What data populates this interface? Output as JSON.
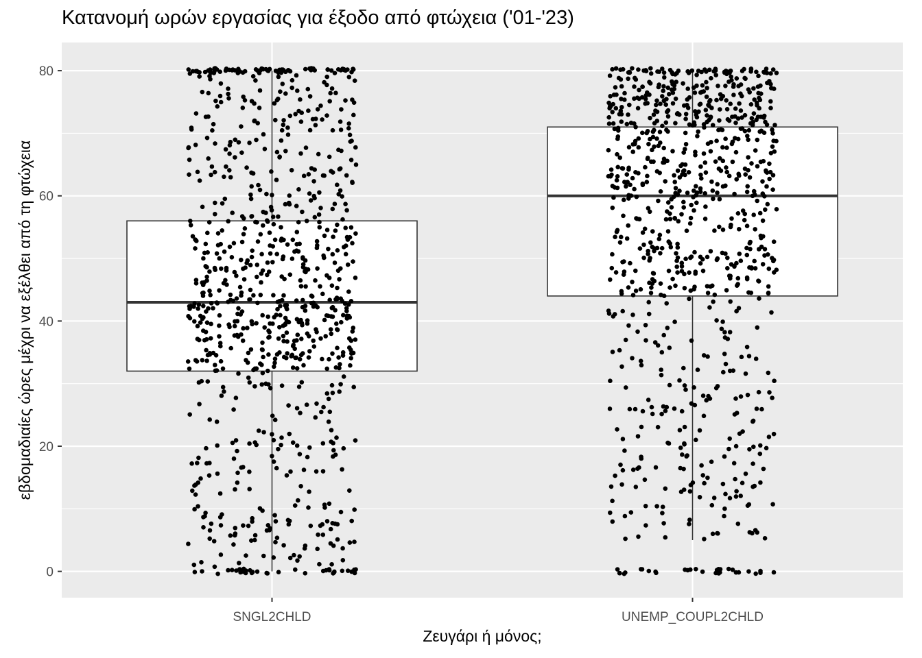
{
  "chart_data": {
    "type": "boxplot_jitter",
    "title": "Κατανομή ωρών εργασίας για έξοδο από φτώχεια ('01-'23)",
    "xlabel": "Ζευγάρι ή μόνος;",
    "ylabel": "εβδομαδιαίες ώρες μέχρι να εξέλθει από τη φτώχεια",
    "categories": [
      "SNGL2CHLD",
      "UNEMP_COUPL2CHLD"
    ],
    "ylim": [
      -4.2,
      84.5
    ],
    "yticks": [
      0,
      20,
      40,
      60,
      80
    ],
    "grid": true,
    "background": "#ebebeb",
    "point_color": "#000000",
    "boxes": [
      {
        "category": "SNGL2CHLD",
        "min": 0,
        "q1": 32,
        "median": 43,
        "q3": 56,
        "max": 80,
        "points_shown": 900
      },
      {
        "category": "UNEMP_COUPL2CHLD",
        "min": 5,
        "q1": 44,
        "median": 60,
        "q3": 71,
        "max": 80,
        "points_shown": 900
      }
    ]
  }
}
